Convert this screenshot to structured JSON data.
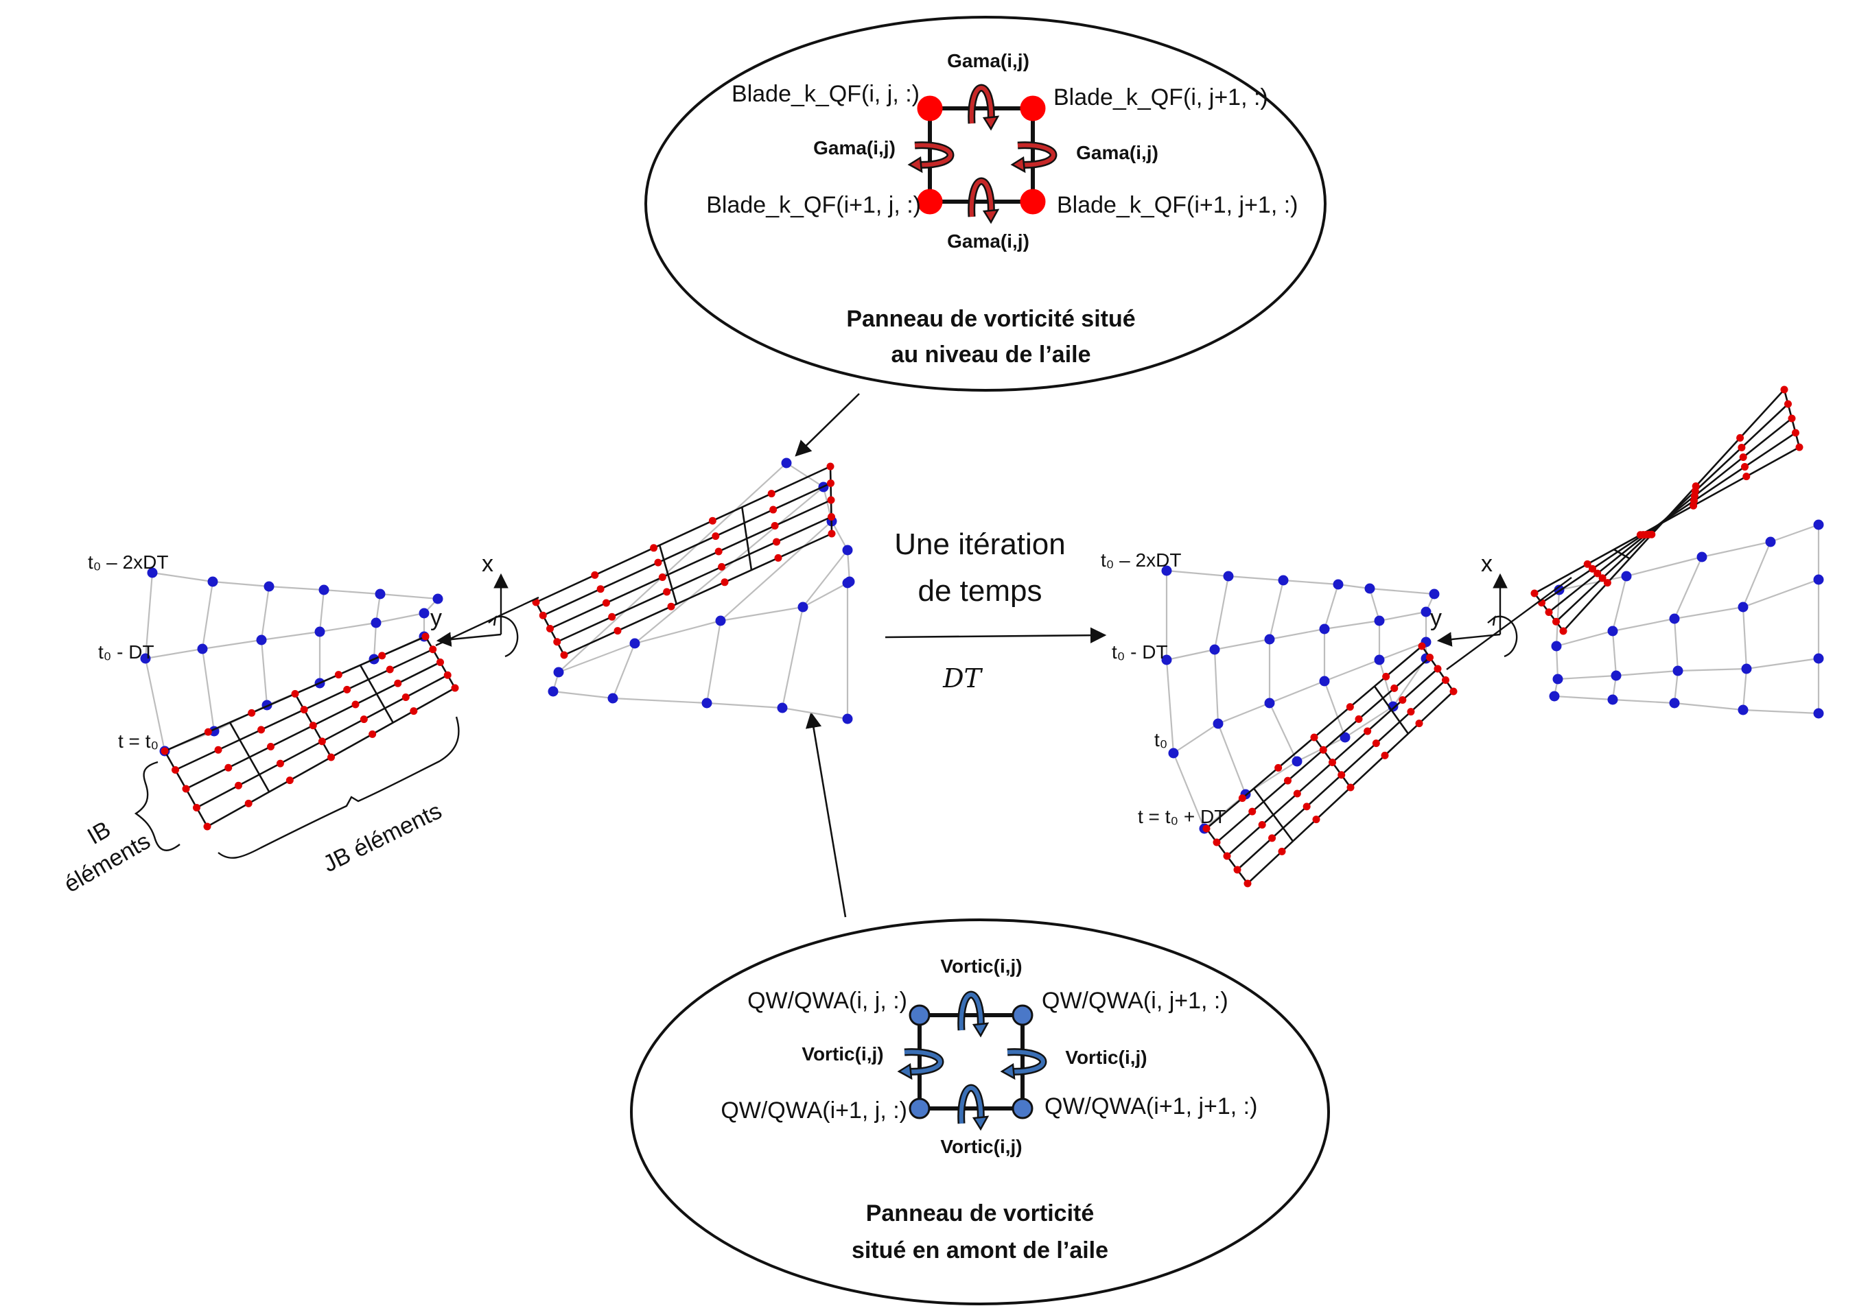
{
  "top_callout": {
    "title_line1": "Panneau de vorticité situé",
    "title_line2": "au niveau de l’aile",
    "edge_label": "Gama(i,j)",
    "corner_tl": "Blade_k_QF(i, j, :)",
    "corner_tr": "Blade_k_QF(i, j+1, :)",
    "corner_bl": "Blade_k_QF(i+1, j, :)",
    "corner_br": "Blade_k_QF(i+1, j+1, :)",
    "node_color": "#ff0000",
    "circulation_color": "#c62828"
  },
  "bottom_callout": {
    "title_line1": "Panneau de vorticité",
    "title_line2": "situé en amont de l’aile",
    "edge_label": "Vortic(i,j)",
    "corner_tl": "QW/QWA(i, j, :)",
    "corner_tr": "QW/QWA(i, j+1, :)",
    "corner_bl": "QW/QWA(i+1, j, :)",
    "corner_br": "QW/QWA(i+1, j+1, :)",
    "node_color": "#4a78c8",
    "circulation_color": "#3a6fb5"
  },
  "center": {
    "iteration_line1": "Une itération",
    "iteration_line2": "de temps",
    "dt_symbol": "DT"
  },
  "left_view": {
    "time_labels": [
      "t₀ – 2xDT",
      "t₀ - DT",
      "t = t₀"
    ],
    "axis_x": "x",
    "axis_y": "y",
    "ib_line1": "IB",
    "ib_line2": "éléments",
    "jb_label": "JB éléments"
  },
  "right_view": {
    "time_labels": [
      "t₀ – 2xDT",
      "t₀ - DT",
      "t₀",
      "t = t₀ + DT"
    ],
    "axis_x": "x",
    "axis_y": "y"
  },
  "colors": {
    "blade_node": "#e00000",
    "wake_node": "#1a1acc",
    "wake_grid": "#bdbdbd"
  }
}
